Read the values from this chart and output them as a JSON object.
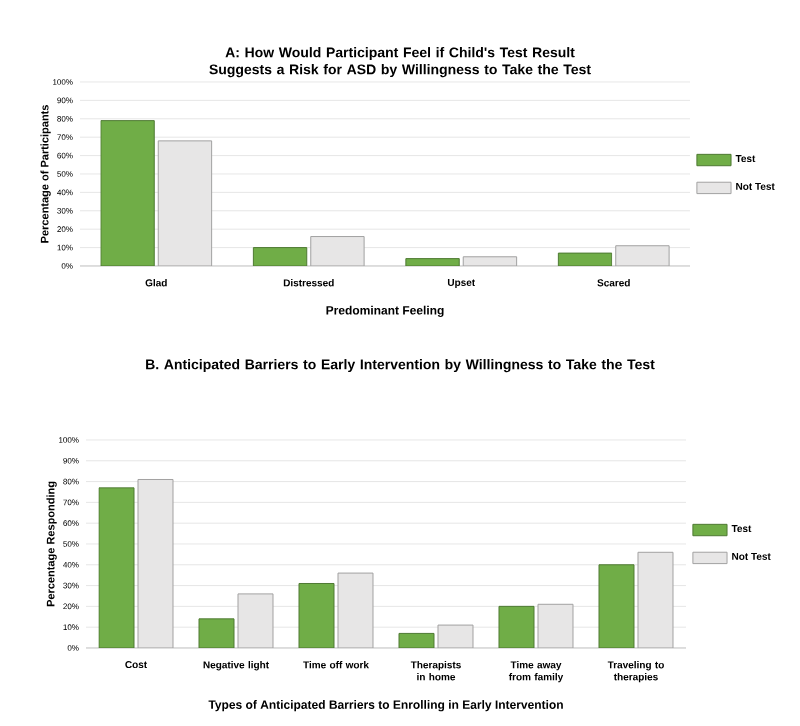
{
  "chart_data": [
    {
      "type": "bar",
      "title": "A: How Would Participant Feel if Child's Test Result Suggests a Risk for ASD by Willingness to Take the Test",
      "xlabel": "Predominant Feeling",
      "ylabel": "Percentage of Participants",
      "categories": [
        "Glad",
        "Distressed",
        "Upset",
        "Scared"
      ],
      "series": [
        {
          "name": "Test",
          "color": "#70ad47",
          "values": [
            79,
            10,
            4,
            7
          ]
        },
        {
          "name": "Not Test",
          "color": "#e7e6e6",
          "values": [
            68,
            16,
            5,
            11
          ]
        }
      ],
      "ylim": [
        0,
        100
      ],
      "yticks": [
        {
          "value": 0,
          "label": "0%"
        },
        {
          "value": 10,
          "label": "10%"
        },
        {
          "value": 20,
          "label": "20%"
        },
        {
          "value": 30,
          "label": "30%"
        },
        {
          "value": 40,
          "label": "40%"
        },
        {
          "value": 50,
          "label": "50%"
        },
        {
          "value": 60,
          "label": "60%"
        },
        {
          "value": 70,
          "label": "70%"
        },
        {
          "value": 80,
          "label": "80%"
        },
        {
          "value": 90,
          "label": "90%"
        },
        {
          "value": 100,
          "label": "100%"
        }
      ],
      "grid": "y",
      "legend": "right"
    },
    {
      "type": "bar",
      "title": "B. Anticipated Barriers to Early Intervention by Willingness to Take the Test",
      "xlabel": "Types of Anticipated Barriers to Enrolling in Early Intervention",
      "ylabel": "Percentage Responding",
      "categories": [
        "Cost",
        "Negative light",
        "Time off work",
        "Therapists in home",
        "Time away from family",
        "Traveling to therapies"
      ],
      "series": [
        {
          "name": "Test",
          "color": "#70ad47",
          "values": [
            77,
            14,
            31,
            7,
            20,
            40
          ]
        },
        {
          "name": "Not Test",
          "color": "#e7e6e6",
          "values": [
            81,
            26,
            36,
            11,
            21,
            46
          ]
        }
      ],
      "ylim": [
        0,
        100
      ],
      "yticks": [
        {
          "value": 0,
          "label": "0%"
        },
        {
          "value": 10,
          "label": "10%"
        },
        {
          "value": 20,
          "label": "20%"
        },
        {
          "value": 30,
          "label": "30%"
        },
        {
          "value": 40,
          "label": "40%"
        },
        {
          "value": 50,
          "label": "50%"
        },
        {
          "value": 60,
          "label": "60%"
        },
        {
          "value": 70,
          "label": "70%"
        },
        {
          "value": 80,
          "label": "80%"
        },
        {
          "value": 90,
          "label": "90%"
        },
        {
          "value": 100,
          "label": "100%"
        }
      ],
      "grid": "y",
      "legend": "right"
    }
  ]
}
